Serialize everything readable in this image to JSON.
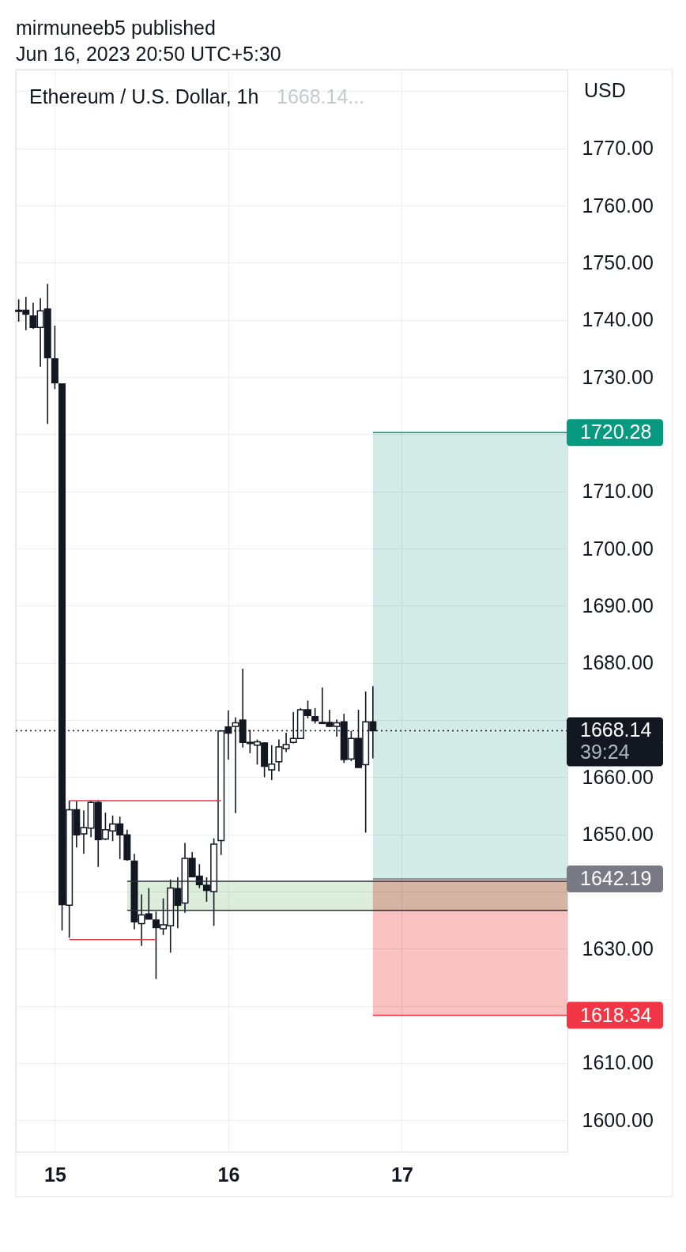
{
  "chart_data": {
    "type": "candlestick",
    "title": "Ethereum / U.S. Dollar, 1h",
    "ylabel": "USD",
    "color": "#131722",
    "annotations": [
      "mirmuneeb5 published",
      "Jun 16, 2023 20:50 UTC+5:30",
      "1668.14...",
      "39:24"
    ],
    "x": [
      "2023-06-14T19:30",
      "2023-06-14T20:30",
      "2023-06-14T21:30",
      "2023-06-14T22:30",
      "2023-06-14T23:30",
      "2023-06-15T00:30",
      "2023-06-15T01:30",
      "2023-06-15T02:30",
      "2023-06-15T03:30",
      "2023-06-15T04:30",
      "2023-06-15T05:30",
      "2023-06-15T06:30",
      "2023-06-15T07:30",
      "2023-06-15T08:30",
      "2023-06-15T09:30",
      "2023-06-15T10:30",
      "2023-06-15T11:30",
      "2023-06-15T12:30",
      "2023-06-15T13:30",
      "2023-06-15T14:30",
      "2023-06-15T15:30",
      "2023-06-15T16:30",
      "2023-06-15T17:30",
      "2023-06-15T18:30",
      "2023-06-15T19:30",
      "2023-06-15T20:30",
      "2023-06-15T21:30",
      "2023-06-15T22:30",
      "2023-06-15T23:30",
      "2023-06-16T00:30",
      "2023-06-16T01:30",
      "2023-06-16T02:30",
      "2023-06-16T03:30",
      "2023-06-16T04:30",
      "2023-06-16T05:30",
      "2023-06-16T06:30",
      "2023-06-16T07:30",
      "2023-06-16T08:30",
      "2023-06-16T09:30",
      "2023-06-16T10:30",
      "2023-06-16T11:30",
      "2023-06-16T12:30",
      "2023-06-16T13:30",
      "2023-06-16T14:30",
      "2023-06-16T15:30",
      "2023-06-16T16:30",
      "2023-06-16T17:30",
      "2023-06-16T18:30",
      "2023-06-16T19:30",
      "2023-06-16T20:30"
    ],
    "ohlc": [
      [
        1741.7,
        1743.6,
        1739.7,
        1741.5
      ],
      [
        1741.7,
        1744.0,
        1738.2,
        1741.0
      ],
      [
        1740.7,
        1743.0,
        1738.4,
        1738.7
      ],
      [
        1738.7,
        1743.8,
        1731.8,
        1741.6
      ],
      [
        1741.9,
        1746.3,
        1721.8,
        1733.4
      ],
      [
        1733.2,
        1739.0,
        1727.9,
        1729.0
      ],
      [
        1728.8,
        1728.8,
        1633.2,
        1637.7
      ],
      [
        1637.6,
        1655.9,
        1631.9,
        1654.3
      ],
      [
        1654.3,
        1655.8,
        1647.7,
        1649.9
      ],
      [
        1650.1,
        1654.2,
        1646.6,
        1651.2
      ],
      [
        1651.1,
        1655.9,
        1649.5,
        1655.6
      ],
      [
        1655.6,
        1655.9,
        1644.3,
        1649.1
      ],
      [
        1649.2,
        1653.8,
        1649.0,
        1650.8
      ],
      [
        1650.6,
        1653.3,
        1648.8,
        1651.8
      ],
      [
        1651.8,
        1653.1,
        1645.7,
        1649.9
      ],
      [
        1649.9,
        1650.8,
        1645.4,
        1645.6
      ],
      [
        1645.3,
        1646.6,
        1633.4,
        1634.7
      ],
      [
        1634.4,
        1639.5,
        1630.5,
        1635.9
      ],
      [
        1636.1,
        1640.6,
        1635.1,
        1635.2
      ],
      [
        1635.0,
        1636.5,
        1624.7,
        1633.7
      ],
      [
        1633.5,
        1638.8,
        1632.4,
        1634.2
      ],
      [
        1634.0,
        1642.1,
        1629.3,
        1640.6
      ],
      [
        1640.5,
        1642.5,
        1633.6,
        1637.6
      ],
      [
        1638.0,
        1648.5,
        1636.3,
        1645.8
      ],
      [
        1645.8,
        1646.9,
        1642.5,
        1642.6
      ],
      [
        1642.7,
        1644.8,
        1640.6,
        1641.2
      ],
      [
        1641.1,
        1642.5,
        1638.2,
        1640.2
      ],
      [
        1640.0,
        1649.3,
        1634.0,
        1648.3
      ],
      [
        1648.9,
        1668.2,
        1646.4,
        1668.1
      ],
      [
        1668.8,
        1671.7,
        1663.1,
        1667.7
      ],
      [
        1668.9,
        1670.5,
        1653.7,
        1669.5
      ],
      [
        1670.0,
        1679.0,
        1665.2,
        1666.1
      ],
      [
        1666.1,
        1668.3,
        1664.2,
        1665.9
      ],
      [
        1665.6,
        1666.6,
        1662.2,
        1666.2
      ],
      [
        1666.0,
        1666.1,
        1660.0,
        1661.9
      ],
      [
        1661.3,
        1665.6,
        1659.5,
        1662.3
      ],
      [
        1662.7,
        1666.6,
        1661.0,
        1665.3
      ],
      [
        1665.0,
        1667.8,
        1664.4,
        1665.7
      ],
      [
        1666.1,
        1671.4,
        1665.9,
        1666.8
      ],
      [
        1666.8,
        1672.1,
        1666.7,
        1671.8
      ],
      [
        1671.8,
        1673.4,
        1670.3,
        1670.8
      ],
      [
        1670.6,
        1672.1,
        1669.4,
        1669.9
      ],
      [
        1669.6,
        1675.7,
        1669.3,
        1669.4
      ],
      [
        1669.6,
        1671.8,
        1668.8,
        1668.9
      ],
      [
        1668.9,
        1670.1,
        1667.1,
        1669.5
      ],
      [
        1669.7,
        1671.1,
        1662.5,
        1663.1
      ],
      [
        1663.2,
        1668.1,
        1662.8,
        1666.8
      ],
      [
        1666.8,
        1671.8,
        1661.7,
        1661.7
      ],
      [
        1662.2,
        1675.0,
        1650.3,
        1669.7
      ],
      [
        1669.7,
        1675.9,
        1663.3,
        1668.14
      ]
    ],
    "series": [
      {
        "type": "line",
        "x": [
          "2023-06-15T10:30",
          "2023-06-17T23:25"
        ],
        "values": [
          1641.8,
          1641.8
        ],
        "color": "#2a2e39"
      },
      {
        "type": "line",
        "x": [
          "2023-06-15T10:30",
          "2023-06-17T23:25"
        ],
        "values": [
          1636.7,
          1636.7
        ],
        "color": "#2a2e39"
      },
      {
        "type": "line",
        "x": [
          "2023-06-15T02:30",
          "2023-06-15T23:30"
        ],
        "values": [
          1655.9,
          1655.9
        ],
        "color": "#e0394a"
      },
      {
        "type": "line",
        "x": [
          "2023-06-15T02:30",
          "2023-06-15T14:30"
        ],
        "values": [
          1631.6,
          1631.6
        ],
        "color": "#e0394a"
      }
    ],
    "bands": [
      {
        "axis": "y",
        "from": 1642.19,
        "to": 1720.28,
        "color": "#d2ebe7"
      },
      {
        "axis": "y",
        "from": 1618.34,
        "to": 1642.19,
        "color": "#f9c1bf"
      },
      {
        "axis": "y",
        "from": 1636.7,
        "to": 1641.8,
        "color": "#dceedb"
      }
    ],
    "ref_lines": [
      {
        "axis": "y",
        "value": 1720.28,
        "label": "1720.28",
        "color": "#089981",
        "line_style": "solid"
      },
      {
        "axis": "y",
        "value": 1668.14,
        "label": "1668.14",
        "color": "#131722",
        "line_style": "dotted"
      },
      {
        "axis": "y",
        "value": 1642.19,
        "label": "1642.19",
        "color": "#787b86",
        "line_style": "solid"
      },
      {
        "axis": "y",
        "value": 1618.34,
        "label": "1618.34",
        "color": "#f23645",
        "line_style": "solid"
      }
    ],
    "xlim": [
      "2023-06-14T19:06",
      "2023-06-17T23:25"
    ],
    "xticks": [
      {
        "value": "2023-06-15T00:30",
        "label": "15"
      },
      {
        "value": "2023-06-16T00:30",
        "label": "16"
      },
      {
        "value": "2023-06-17T00:30",
        "label": "17"
      }
    ],
    "ylim": [
      1594.5,
      1783.8
    ],
    "yticks": [
      {
        "value": 1600,
        "label": "1600.00"
      },
      {
        "value": 1610,
        "label": "1610.00"
      },
      {
        "value": 1620,
        "label": null
      },
      {
        "value": 1630,
        "label": "1630.00"
      },
      {
        "value": 1640,
        "label": null
      },
      {
        "value": 1650,
        "label": "1650.00"
      },
      {
        "value": 1660,
        "label": "1660.00"
      },
      {
        "value": 1670,
        "label": null
      },
      {
        "value": 1680,
        "label": "1680.00"
      },
      {
        "value": 1690,
        "label": "1690.00"
      },
      {
        "value": 1700,
        "label": "1700.00"
      },
      {
        "value": 1710,
        "label": "1710.00"
      },
      {
        "value": 1720,
        "label": null
      },
      {
        "value": 1730,
        "label": "1730.00"
      },
      {
        "value": 1740,
        "label": "1740.00"
      },
      {
        "value": 1750,
        "label": "1750.00"
      },
      {
        "value": 1760,
        "label": "1760.00"
      },
      {
        "value": 1770,
        "label": "1770.00"
      },
      {
        "value": 1780,
        "label": null
      }
    ],
    "grid": true
  }
}
